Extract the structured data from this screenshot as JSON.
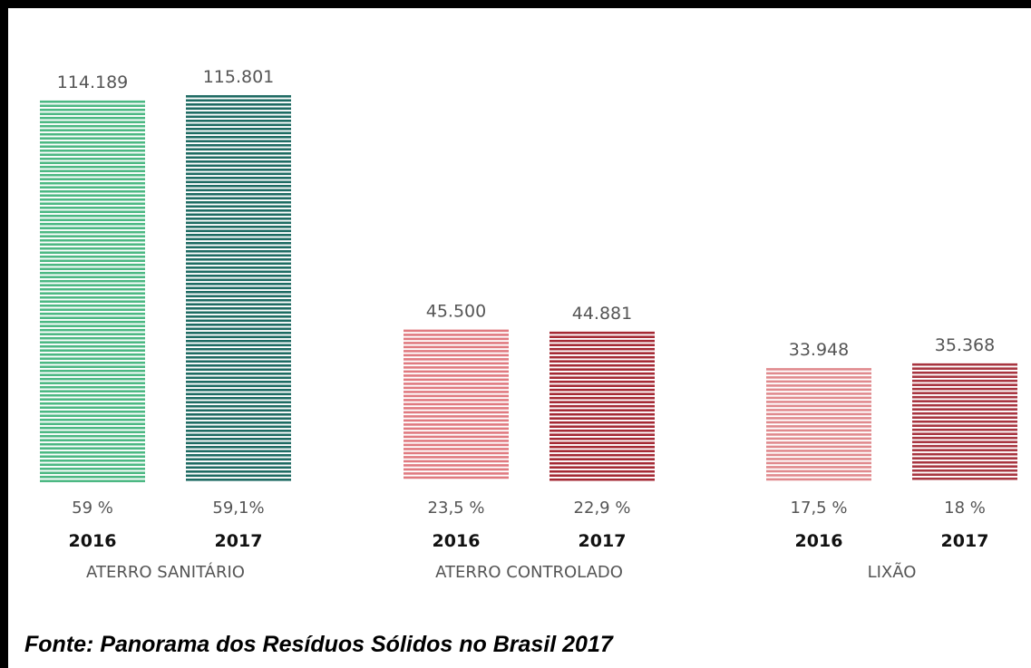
{
  "chart_data": {
    "type": "bar",
    "groups": [
      {
        "name": "ATERRO SANITÁRIO",
        "bars": [
          {
            "year": "2016",
            "value": 114189,
            "value_label": "114.189",
            "percent_label": "59 %",
            "color": "#4cb883"
          },
          {
            "year": "2017",
            "value": 115801,
            "value_label": "115.801",
            "percent_label": "59,1%",
            "color": "#1e6b63"
          }
        ]
      },
      {
        "name": "ATERRO CONTROLADO",
        "bars": [
          {
            "year": "2016",
            "value": 45500,
            "value_label": "45.500",
            "percent_label": "23,5 %",
            "color": "#e07a80"
          },
          {
            "year": "2017",
            "value": 44881,
            "value_label": "44.881",
            "percent_label": "22,9 %",
            "color": "#a52a35"
          }
        ]
      },
      {
        "name": "LIXÃO",
        "bars": [
          {
            "year": "2016",
            "value": 33948,
            "value_label": "33.948",
            "percent_label": "17,5 %",
            "color": "#e08a8e"
          },
          {
            "year": "2017",
            "value": 35368,
            "value_label": "35.368",
            "percent_label": "18 %",
            "color": "#a83540"
          }
        ]
      }
    ],
    "ylim": [
      0,
      115801
    ],
    "grid": false,
    "legend": "none"
  },
  "source": "Fonte: Panorama dos Resíduos Sólidos no Brasil 2017"
}
